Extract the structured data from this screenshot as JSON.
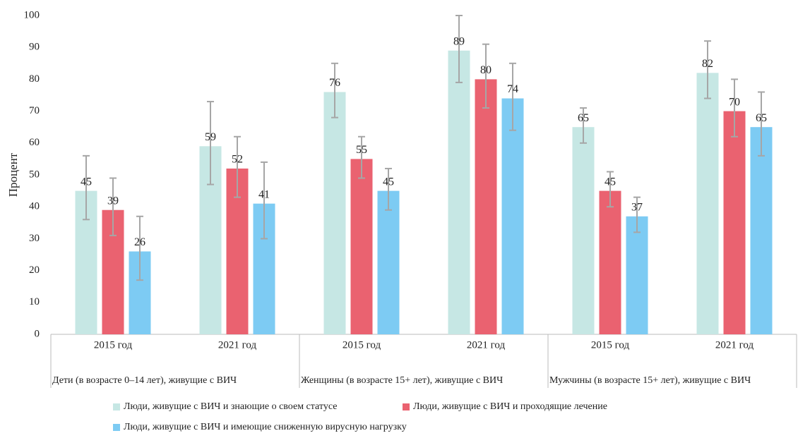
{
  "chart_data": {
    "type": "bar",
    "y_label": "Процент",
    "categories": [
      "2015 год",
      "2021 год",
      "2015 год",
      "2021 год",
      "2015 год",
      "2021 год"
    ],
    "groups": [
      "Дети (в возрасте 0–14 лет), живущие с ВИЧ",
      "Женщины (в возрасте 15+ лет), живущие с ВИЧ",
      "Мужчины (в возрасте 15+ лет), живущие с ВИЧ"
    ],
    "series": [
      {
        "name": "Люди, живущие с ВИЧ и знающие о своем статусе",
        "color": "#c6e7e4",
        "values": [
          45,
          59,
          76,
          89,
          65,
          82
        ],
        "ci_low": [
          36,
          47,
          68,
          79,
          60,
          74
        ],
        "ci_high": [
          56,
          73,
          85,
          100,
          71,
          92
        ]
      },
      {
        "name": "Люди, живущие с ВИЧ и проходящие лечение",
        "color": "#ea6270",
        "values": [
          39,
          52,
          55,
          80,
          45,
          70
        ],
        "ci_low": [
          31,
          43,
          49,
          71,
          40,
          62
        ],
        "ci_high": [
          49,
          62,
          62,
          91,
          51,
          80
        ]
      },
      {
        "name": "Люди, живущие с ВИЧ и имеющие сниженную вирусную нагрузку",
        "color": "#7dcbf3",
        "values": [
          26,
          41,
          45,
          74,
          37,
          65
        ],
        "ci_low": [
          17,
          30,
          39,
          64,
          32,
          56
        ],
        "ci_high": [
          37,
          54,
          52,
          85,
          43,
          76
        ]
      }
    ],
    "ylim": [
      0,
      100
    ],
    "yticks": [
      0,
      10,
      20,
      30,
      40,
      50,
      60,
      70,
      80,
      90,
      100
    ],
    "grid": false
  }
}
